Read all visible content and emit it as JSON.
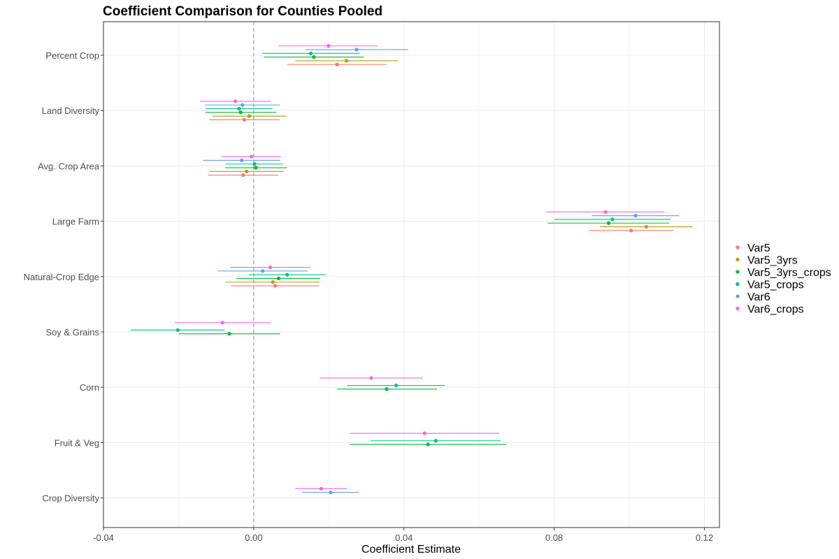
{
  "chart_data": {
    "type": "scatter",
    "subtype": "coefficient-plot",
    "title": "Coefficient Comparison for Counties Pooled",
    "xlabel": "Coefficient Estimate",
    "ylabel": "",
    "xlim": [
      -0.04,
      0.124
    ],
    "x_ticks": [
      -0.04,
      0.0,
      0.04,
      0.08,
      0.12
    ],
    "x_tick_labels": [
      "-0.04",
      "0.00",
      "0.04",
      "0.08",
      "0.12"
    ],
    "reference_line": 0,
    "grid": true,
    "legend_position": "right",
    "categories": [
      "Percent Crop",
      "Land Diversity",
      "Avg. Crop Area",
      "Large Farm",
      "Natural-Crop Edge",
      "Soy & Grains",
      "Corn",
      "Fruit & Veg",
      "Crop Diversity"
    ],
    "series": [
      {
        "name": "Var5",
        "color": "#F8766D",
        "points": [
          {
            "category": "Percent Crop",
            "estimate": 0.0222,
            "low": 0.009,
            "high": 0.0354
          },
          {
            "category": "Land Diversity",
            "estimate": -0.0025,
            "low": -0.0119,
            "high": 0.0069
          },
          {
            "category": "Avg. Crop Area",
            "estimate": -0.0028,
            "low": -0.0122,
            "high": 0.0066
          },
          {
            "category": "Large Farm",
            "estimate": 0.1005,
            "low": 0.0893,
            "high": 0.1118
          },
          {
            "category": "Natural-Crop Edge",
            "estimate": 0.0057,
            "low": -0.0061,
            "high": 0.0175
          }
        ]
      },
      {
        "name": "Var5_3yrs",
        "color": "#B79F00",
        "points": [
          {
            "category": "Percent Crop",
            "estimate": 0.0247,
            "low": 0.0111,
            "high": 0.0384
          },
          {
            "category": "Land Diversity",
            "estimate": -0.0012,
            "low": -0.011,
            "high": 0.0087
          },
          {
            "category": "Avg. Crop Area",
            "estimate": -0.0019,
            "low": -0.0118,
            "high": 0.008
          },
          {
            "category": "Large Farm",
            "estimate": 0.1045,
            "low": 0.0922,
            "high": 0.1168
          },
          {
            "category": "Natural-Crop Edge",
            "estimate": 0.0051,
            "low": -0.0075,
            "high": 0.0176
          }
        ]
      },
      {
        "name": "Var5_3yrs_crops",
        "color": "#00BA38",
        "points": [
          {
            "category": "Percent Crop",
            "estimate": 0.016,
            "low": 0.0027,
            "high": 0.0293
          },
          {
            "category": "Land Diversity",
            "estimate": -0.0035,
            "low": -0.0129,
            "high": 0.006
          },
          {
            "category": "Avg. Crop Area",
            "estimate": 0.0006,
            "low": -0.0077,
            "high": 0.0089
          },
          {
            "category": "Large Farm",
            "estimate": 0.0945,
            "low": 0.0783,
            "high": 0.1107
          },
          {
            "category": "Natural-Crop Edge",
            "estimate": 0.0066,
            "low": -0.0046,
            "high": 0.0177
          },
          {
            "category": "Soy & Grains",
            "estimate": -0.0065,
            "low": -0.02,
            "high": 0.007
          },
          {
            "category": "Corn",
            "estimate": 0.0354,
            "low": 0.0221,
            "high": 0.0488
          },
          {
            "category": "Fruit & Veg",
            "estimate": 0.0464,
            "low": 0.0255,
            "high": 0.0673
          }
        ]
      },
      {
        "name": "Var5_crops",
        "color": "#00C08B",
        "points": [
          {
            "category": "Percent Crop",
            "estimate": 0.0152,
            "low": 0.0023,
            "high": 0.0282
          },
          {
            "category": "Land Diversity",
            "estimate": -0.0039,
            "low": -0.0128,
            "high": 0.005
          },
          {
            "category": "Avg. Crop Area",
            "estimate": 0.0002,
            "low": -0.0074,
            "high": 0.0078
          },
          {
            "category": "Large Farm",
            "estimate": 0.0955,
            "low": 0.0801,
            "high": 0.111
          },
          {
            "category": "Natural-Crop Edge",
            "estimate": 0.0089,
            "low": -0.0013,
            "high": 0.0192
          },
          {
            "category": "Soy & Grains",
            "estimate": -0.0202,
            "low": -0.0327,
            "high": -0.0077
          },
          {
            "category": "Corn",
            "estimate": 0.0379,
            "low": 0.0249,
            "high": 0.0509
          },
          {
            "category": "Fruit & Veg",
            "estimate": 0.0485,
            "low": 0.0312,
            "high": 0.0658
          }
        ]
      },
      {
        "name": "Var6",
        "color": "#619CFF",
        "points": [
          {
            "category": "Percent Crop",
            "estimate": 0.0274,
            "low": 0.0137,
            "high": 0.0411
          },
          {
            "category": "Land Diversity",
            "estimate": -0.003,
            "low": -0.013,
            "high": 0.007
          },
          {
            "category": "Avg. Crop Area",
            "estimate": -0.0032,
            "low": -0.0135,
            "high": 0.007
          },
          {
            "category": "Large Farm",
            "estimate": 0.1017,
            "low": 0.09,
            "high": 0.1133
          },
          {
            "category": "Natural-Crop Edge",
            "estimate": 0.0024,
            "low": -0.0095,
            "high": 0.0143
          },
          {
            "category": "Crop Diversity",
            "estimate": 0.0205,
            "low": 0.0129,
            "high": 0.028
          }
        ]
      },
      {
        "name": "Var6_crops",
        "color": "#F564E3",
        "points": [
          {
            "category": "Percent Crop",
            "estimate": 0.0199,
            "low": 0.0066,
            "high": 0.0331
          },
          {
            "category": "Land Diversity",
            "estimate": -0.0049,
            "low": -0.0143,
            "high": 0.0045
          },
          {
            "category": "Avg. Crop Area",
            "estimate": -0.0006,
            "low": -0.0086,
            "high": 0.0073
          },
          {
            "category": "Large Farm",
            "estimate": 0.0937,
            "low": 0.078,
            "high": 0.1094
          },
          {
            "category": "Natural-Crop Edge",
            "estimate": 0.0044,
            "low": -0.0063,
            "high": 0.0151
          },
          {
            "category": "Soy & Grains",
            "estimate": -0.0083,
            "low": -0.0211,
            "high": 0.0045
          },
          {
            "category": "Corn",
            "estimate": 0.0313,
            "low": 0.0176,
            "high": 0.045
          },
          {
            "category": "Fruit & Veg",
            "estimate": 0.0455,
            "low": 0.0256,
            "high": 0.0654
          },
          {
            "category": "Crop Diversity",
            "estimate": 0.018,
            "low": 0.0111,
            "high": 0.0249
          }
        ]
      }
    ]
  }
}
